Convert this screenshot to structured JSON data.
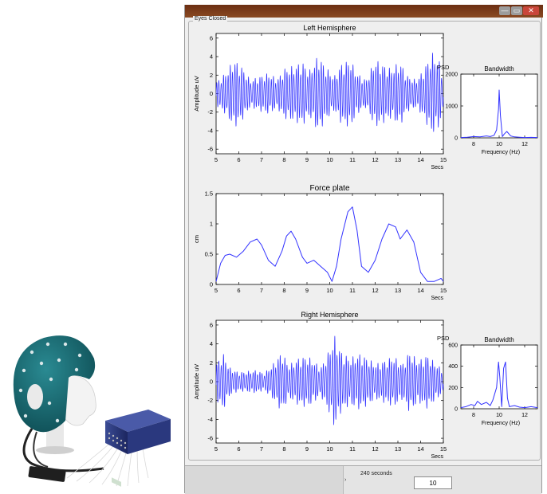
{
  "window": {
    "group_label": "Eyes Closed",
    "controls": {
      "minimize": "—",
      "maximize": "▭",
      "close": "✕"
    },
    "status": {
      "arrow": "›",
      "seconds_label": "240 seconds",
      "field_value": "10"
    }
  },
  "colors": {
    "trace": "#3232ff",
    "titlebar": "#7a3b1a",
    "window_bg": "#efefef",
    "cap": "#17666d",
    "amplifier": "#2b3a7a"
  },
  "chart_data": [
    {
      "type": "line",
      "title": "Left Hemisphere",
      "xlabel": "Secs",
      "ylabel": "Amplitude uV",
      "xlim": [
        5,
        15
      ],
      "ylim": [
        -6.5,
        6.5
      ],
      "xticks": [
        5,
        6,
        7,
        8,
        9,
        10,
        11,
        12,
        13,
        14,
        15
      ],
      "yticks": [
        -6,
        -4,
        -2,
        0,
        2,
        4,
        6
      ],
      "series": [
        {
          "frequency_hz": 10,
          "envelope": [
            [
              5,
              1.0
            ],
            [
              5.4,
              1.8
            ],
            [
              5.8,
              3.0
            ],
            [
              6.2,
              2.2
            ],
            [
              6.5,
              1.2
            ],
            [
              6.9,
              1.5
            ],
            [
              7.3,
              1.8
            ],
            [
              7.7,
              1.3
            ],
            [
              8.0,
              2.2
            ],
            [
              8.4,
              2.4
            ],
            [
              8.8,
              2.8
            ],
            [
              9.1,
              2.0
            ],
            [
              9.5,
              3.4
            ],
            [
              9.8,
              2.4
            ],
            [
              10.2,
              1.5
            ],
            [
              10.5,
              2.6
            ],
            [
              10.9,
              3.0
            ],
            [
              11.2,
              1.8
            ],
            [
              11.6,
              1.2
            ],
            [
              12.0,
              3.0
            ],
            [
              12.3,
              2.6
            ],
            [
              12.7,
              2.2
            ],
            [
              13.1,
              2.8
            ],
            [
              13.4,
              1.6
            ],
            [
              13.8,
              1.2
            ],
            [
              14.1,
              2.0
            ],
            [
              14.5,
              3.6
            ],
            [
              14.8,
              3.0
            ],
            [
              15,
              1.5
            ]
          ]
        }
      ]
    },
    {
      "type": "line",
      "title": "Bandwidth",
      "xlabel": "Frequency (Hz)",
      "ylabel": "PSD",
      "xlim": [
        7,
        13
      ],
      "ylim": [
        0,
        2000
      ],
      "xticks": [
        8,
        10,
        12
      ],
      "yticks": [
        0,
        1000,
        2000
      ],
      "series": [
        {
          "x": [
            7,
            7.5,
            8,
            8.5,
            9,
            9.3,
            9.6,
            9.8,
            9.95,
            10.0,
            10.1,
            10.25,
            10.4,
            10.6,
            10.9,
            11.2,
            11.6,
            12,
            12.5,
            13
          ],
          "y": [
            10,
            20,
            40,
            30,
            60,
            40,
            80,
            250,
            900,
            1500,
            700,
            40,
            120,
            200,
            60,
            30,
            20,
            10,
            15,
            10
          ]
        }
      ]
    },
    {
      "type": "line",
      "title": "Force plate",
      "xlabel": "Secs",
      "ylabel": "cm",
      "xlim": [
        5,
        15
      ],
      "ylim": [
        0,
        1.5
      ],
      "xticks": [
        5,
        6,
        7,
        8,
        9,
        10,
        11,
        12,
        13,
        14,
        15
      ],
      "yticks": [
        0,
        0.5,
        1,
        1.5
      ],
      "series": [
        {
          "x": [
            5,
            5.2,
            5.4,
            5.6,
            5.9,
            6.2,
            6.5,
            6.8,
            7.0,
            7.3,
            7.6,
            7.9,
            8.1,
            8.3,
            8.5,
            8.8,
            9.0,
            9.3,
            9.6,
            9.9,
            10.1,
            10.3,
            10.5,
            10.8,
            11.0,
            11.2,
            11.4,
            11.7,
            12.0,
            12.3,
            12.6,
            12.9,
            13.1,
            13.4,
            13.7,
            14.0,
            14.3,
            14.6,
            14.9,
            15.0
          ],
          "y": [
            0.05,
            0.35,
            0.48,
            0.5,
            0.45,
            0.55,
            0.7,
            0.75,
            0.65,
            0.4,
            0.3,
            0.55,
            0.8,
            0.88,
            0.75,
            0.45,
            0.35,
            0.4,
            0.3,
            0.2,
            0.05,
            0.3,
            0.75,
            1.2,
            1.28,
            0.9,
            0.3,
            0.2,
            0.4,
            0.75,
            1.0,
            0.95,
            0.75,
            0.9,
            0.7,
            0.2,
            0.05,
            0.05,
            0.1,
            0.05
          ]
        }
      ]
    },
    {
      "type": "line",
      "title": "Right Hemisphere",
      "xlabel": "Secs",
      "ylabel": "Amplitude uV",
      "xlim": [
        5,
        15
      ],
      "ylim": [
        -6.5,
        6.5
      ],
      "xticks": [
        5,
        6,
        7,
        8,
        9,
        10,
        11,
        12,
        13,
        14,
        15
      ],
      "yticks": [
        -6,
        -4,
        -2,
        0,
        2,
        4,
        6
      ],
      "series": [
        {
          "frequency_hz": 10,
          "envelope": [
            [
              5,
              1.5
            ],
            [
              5.3,
              2.5
            ],
            [
              5.6,
              1.2
            ],
            [
              6.0,
              0.8
            ],
            [
              6.4,
              0.9
            ],
            [
              6.8,
              1.0
            ],
            [
              7.1,
              0.7
            ],
            [
              7.5,
              1.5
            ],
            [
              7.9,
              2.6
            ],
            [
              8.2,
              1.4
            ],
            [
              8.6,
              2.0
            ],
            [
              9.0,
              2.2
            ],
            [
              9.3,
              1.8
            ],
            [
              9.6,
              1.2
            ],
            [
              10.0,
              2.8
            ],
            [
              10.2,
              4.0
            ],
            [
              10.5,
              2.6
            ],
            [
              10.9,
              2.0
            ],
            [
              11.3,
              2.4
            ],
            [
              11.7,
              2.0
            ],
            [
              12.0,
              1.5
            ],
            [
              12.4,
              1.8
            ],
            [
              12.8,
              2.2
            ],
            [
              13.2,
              1.5
            ],
            [
              13.5,
              2.6
            ],
            [
              13.9,
              1.8
            ],
            [
              14.3,
              2.3
            ],
            [
              14.7,
              1.5
            ],
            [
              15,
              1.0
            ]
          ]
        }
      ]
    },
    {
      "type": "line",
      "title": "Bandwidth",
      "xlabel": "Frequency (Hz)",
      "ylabel": "PSD",
      "xlim": [
        7,
        13
      ],
      "ylim": [
        0,
        600
      ],
      "xticks": [
        8,
        10,
        12
      ],
      "yticks": [
        0,
        200,
        400,
        600
      ],
      "series": [
        {
          "x": [
            7,
            7.4,
            7.8,
            8.1,
            8.3,
            8.6,
            9.0,
            9.3,
            9.5,
            9.8,
            9.95,
            10.05,
            10.2,
            10.35,
            10.5,
            10.65,
            10.8,
            11.2,
            11.6,
            12,
            12.5,
            13
          ],
          "y": [
            10,
            20,
            40,
            30,
            70,
            40,
            60,
            30,
            80,
            200,
            440,
            300,
            20,
            380,
            440,
            100,
            20,
            30,
            15,
            10,
            20,
            10
          ]
        }
      ]
    }
  ]
}
